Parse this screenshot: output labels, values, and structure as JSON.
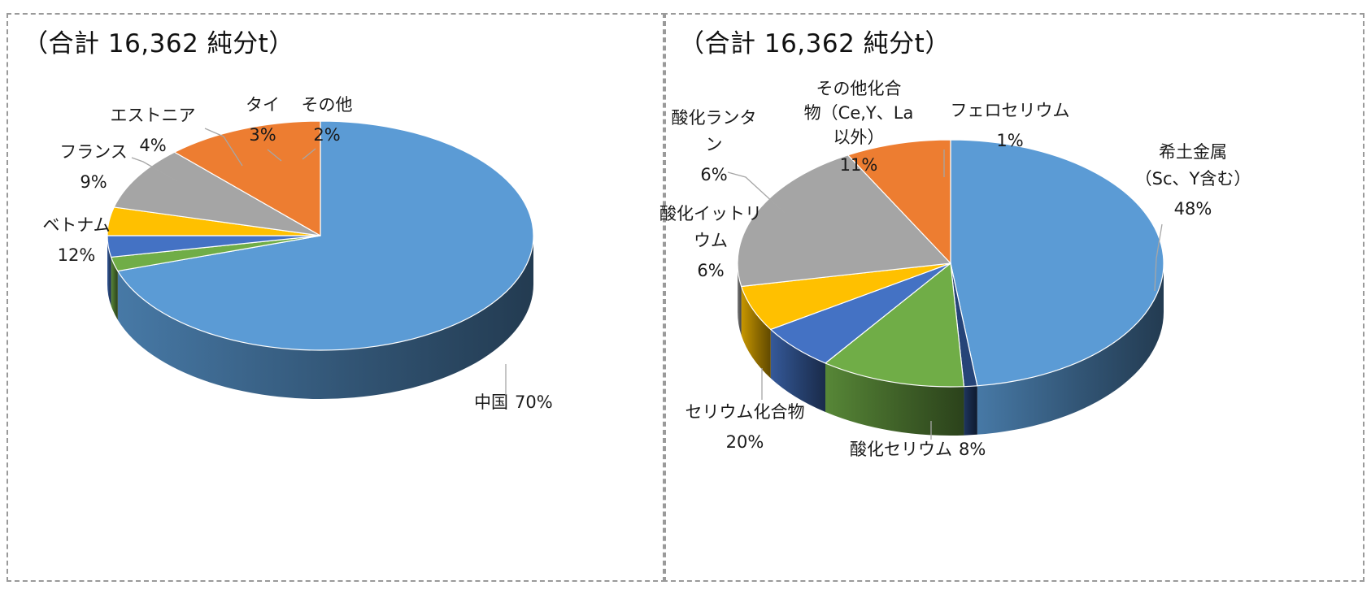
{
  "chart_data": [
    {
      "type": "pie",
      "title": "（合計 16,362 純分t）",
      "style": "3d",
      "slices": [
        {
          "name": "中国",
          "value": 70,
          "label": "70%",
          "color": "#5b9bd5"
        },
        {
          "name": "その他",
          "value": 2,
          "label": "2%",
          "color": "#70ad47"
        },
        {
          "name": "タイ",
          "value": 3,
          "label": "3%",
          "color": "#4472c4"
        },
        {
          "name": "エストニア",
          "value": 4,
          "label": "4%",
          "color": "#ffc000"
        },
        {
          "name": "フランス",
          "value": 9,
          "label": "9%",
          "color": "#a5a5a5"
        },
        {
          "name": "ベトナム",
          "value": 12,
          "label": "12%",
          "color": "#ed7d31"
        }
      ]
    },
    {
      "type": "pie",
      "title": "（合計 16,362 純分t）",
      "style": "3d",
      "slices": [
        {
          "name": "希土金属（Sc、Y含む）",
          "lines": [
            "希土金属",
            "（Sc、Y含む）"
          ],
          "value": 48,
          "label": "48%",
          "color": "#5b9bd5"
        },
        {
          "name": "フェロセリウム",
          "lines": [
            "フェロセリウム"
          ],
          "value": 1,
          "label": "1%",
          "color": "#264478"
        },
        {
          "name": "その他化合物（Ce,Y、La以外）",
          "lines": [
            "その他化合",
            "物（Ce,Y、La",
            "以外）"
          ],
          "value": 11,
          "label": "11%",
          "color": "#70ad47"
        },
        {
          "name": "酸化ランタン",
          "lines": [
            "酸化ランタ",
            "ン"
          ],
          "value": 6,
          "label": "6%",
          "color": "#4472c4"
        },
        {
          "name": "酸化イットリウム",
          "lines": [
            "酸化イットリ",
            "ウム"
          ],
          "value": 6,
          "label": "6%",
          "color": "#ffc000"
        },
        {
          "name": "セリウム化合物",
          "lines": [
            "セリウム化合物"
          ],
          "value": 20,
          "label": "20%",
          "color": "#a5a5a5"
        },
        {
          "name": "酸化セリウム",
          "lines": [
            "酸化セリウム"
          ],
          "value": 8,
          "label": "8%",
          "color": "#ed7d31"
        }
      ]
    }
  ]
}
